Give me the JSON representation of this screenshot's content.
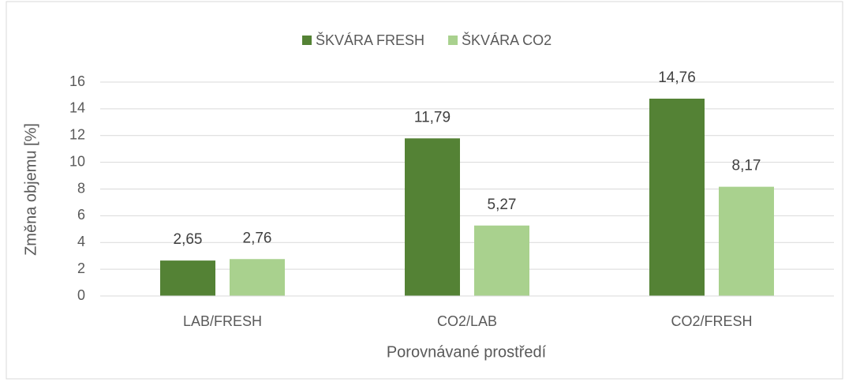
{
  "chart_data": {
    "type": "bar",
    "x_label": "Porovnávané prostředí",
    "y_label": "Změna objemu [%]",
    "categories": [
      "LAB/FRESH",
      "CO2/LAB",
      "CO2/FRESH"
    ],
    "series": [
      {
        "name": "ŠKVÁRA FRESH",
        "color": "#548235",
        "values": [
          2.65,
          11.79,
          14.76
        ],
        "value_labels": [
          "2,65",
          "11,79",
          "14,76"
        ]
      },
      {
        "name": "ŠKVÁRA CO2",
        "color": "#a9d18e",
        "values": [
          2.76,
          5.27,
          8.17
        ],
        "value_labels": [
          "2,76",
          "5,27",
          "8,17"
        ]
      }
    ],
    "ylim": [
      0,
      16
    ],
    "yticks": [
      0,
      2,
      4,
      6,
      8,
      10,
      12,
      14,
      16
    ],
    "grid": true,
    "legend": "top"
  }
}
